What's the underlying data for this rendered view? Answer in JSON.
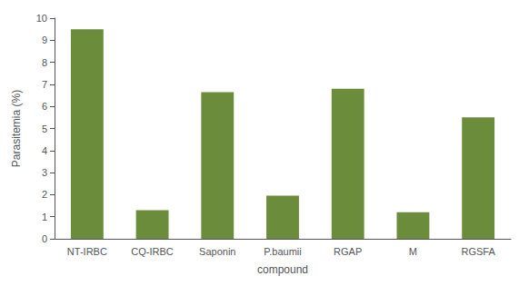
{
  "chart_data": {
    "type": "bar",
    "categories": [
      "NT-IRBC",
      "CQ-IRBC",
      "Saponin",
      "P.baumii",
      "RGAP",
      "M",
      "RGSFA"
    ],
    "values": [
      9.5,
      1.3,
      6.65,
      1.95,
      6.8,
      1.2,
      5.5
    ],
    "color": "#6b8c3a",
    "xlabel": "compound",
    "ylabel": "Parasitemia (%)",
    "ylim": [
      0,
      10
    ],
    "yticks": [
      0,
      1,
      2,
      3,
      4,
      5,
      6,
      7,
      8,
      9,
      10
    ],
    "grid": false
  }
}
